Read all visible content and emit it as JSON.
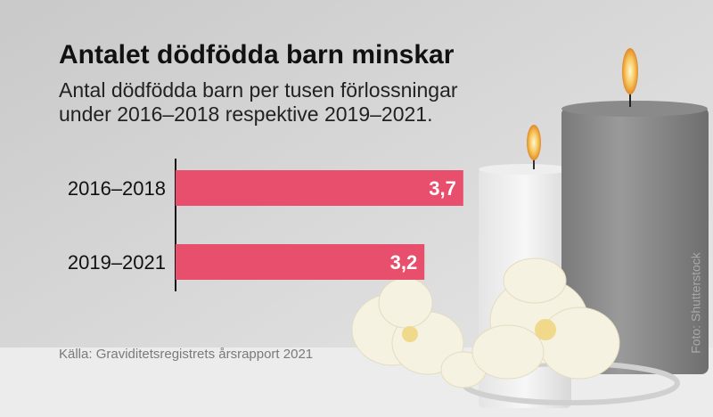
{
  "chart_data": {
    "type": "bar",
    "orientation": "horizontal",
    "title": "Antalet dödfödda barn minskar",
    "subtitle": "Antal dödfödda barn per tusen förlossningar\nunder 2016–2018 respektive 2019–2021.",
    "categories": [
      "2016–2018",
      "2019–2021"
    ],
    "values": [
      3.7,
      3.2
    ],
    "value_labels": [
      "3,7",
      "3,2"
    ],
    "color": "#e84f6c",
    "xlim": [
      0,
      4
    ],
    "source": "Källa: Graviditetsregistrets årsrapport 2021",
    "credit": "Foto: Shutterstock"
  }
}
